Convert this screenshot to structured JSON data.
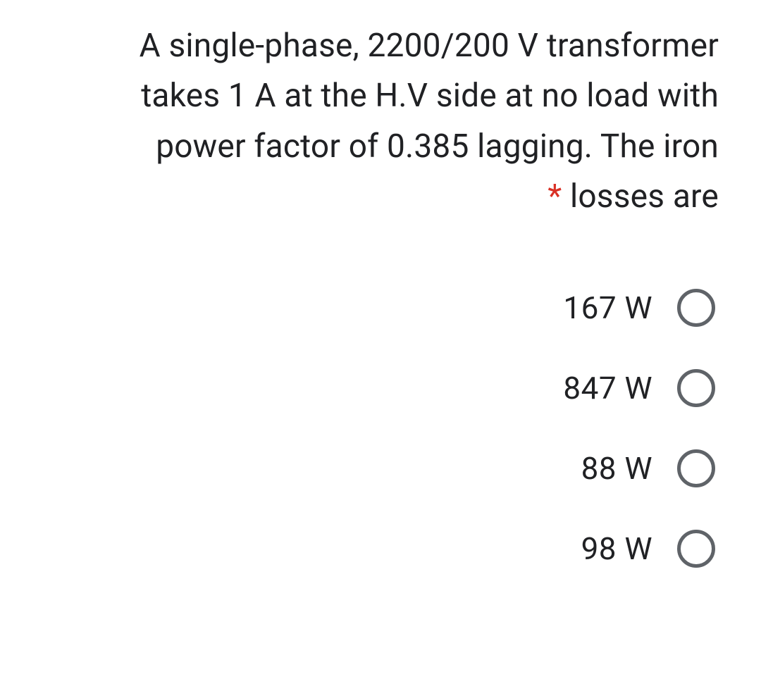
{
  "question": {
    "line1": "A single-phase, 2200/200 V transformer",
    "line2": "takes 1 A at the H.V side at no load with",
    "line3": "power factor of 0.385 lagging. The iron",
    "line4_suffix": " losses are",
    "required_mark": "*"
  },
  "options": [
    {
      "label": "167 W"
    },
    {
      "label": "847 W"
    },
    {
      "label": "88 W"
    },
    {
      "label": "98 W"
    }
  ],
  "style": {
    "text_color": "#202124",
    "asterisk_color": "#d93025",
    "radio_border_color": "#5f6368",
    "background_color": "#ffffff",
    "question_fontsize": 46,
    "option_fontsize": 44,
    "radio_size": 54,
    "radio_border_width": 5
  }
}
